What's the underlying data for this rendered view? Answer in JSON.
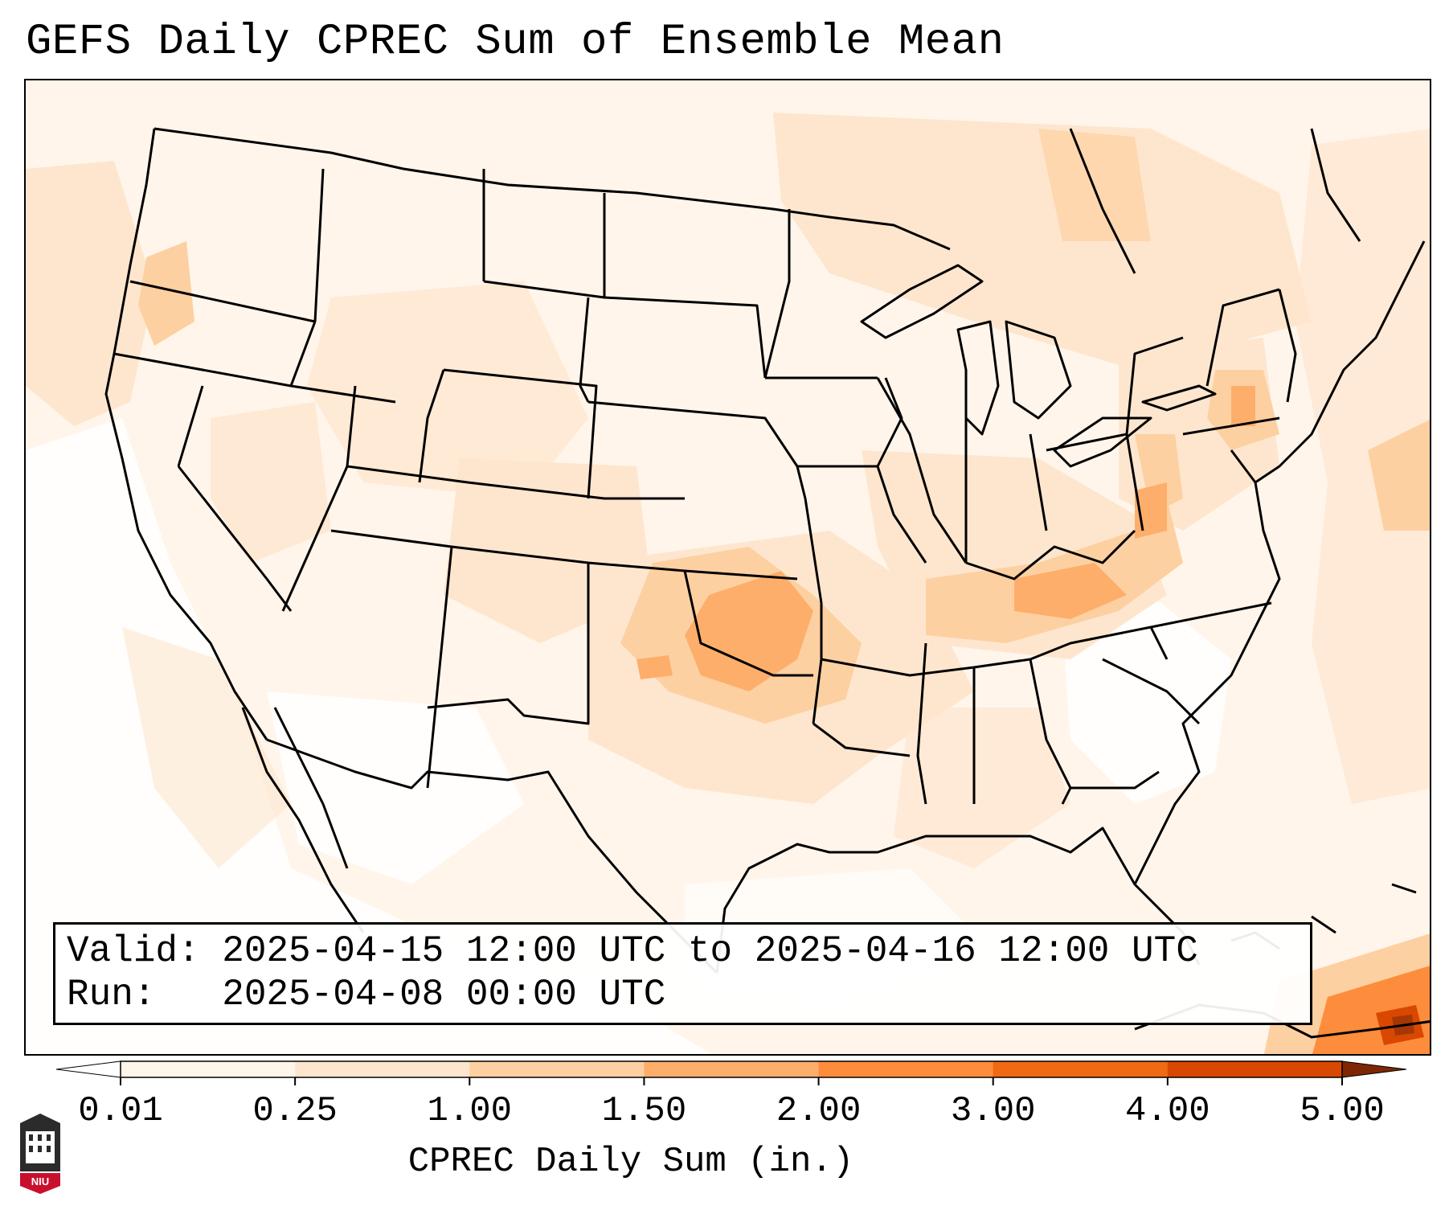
{
  "title": "GEFS Daily CPREC Sum of Ensemble Mean",
  "info": {
    "valid_line": "Valid: 2025-04-15 12:00 UTC to 2025-04-16 12:00 UTC",
    "run_line": "Run:   2025-04-08 00:00 UTC"
  },
  "colorbar": {
    "title": "CPREC Daily Sum (in.)",
    "ticks": [
      "0.01",
      "0.25",
      "1.00",
      "1.50",
      "2.00",
      "3.00",
      "4.00",
      "5.00"
    ],
    "colors": [
      "#fff5eb",
      "#fee6ce",
      "#fdd0a2",
      "#fdae6b",
      "#fd8d3c",
      "#f16913",
      "#d94801",
      "#a63603"
    ],
    "extend_low_color": "#ffffff",
    "extend_high_color": "#7f2704"
  },
  "logo": {
    "text": "NIU",
    "color": "#c8102e"
  }
}
